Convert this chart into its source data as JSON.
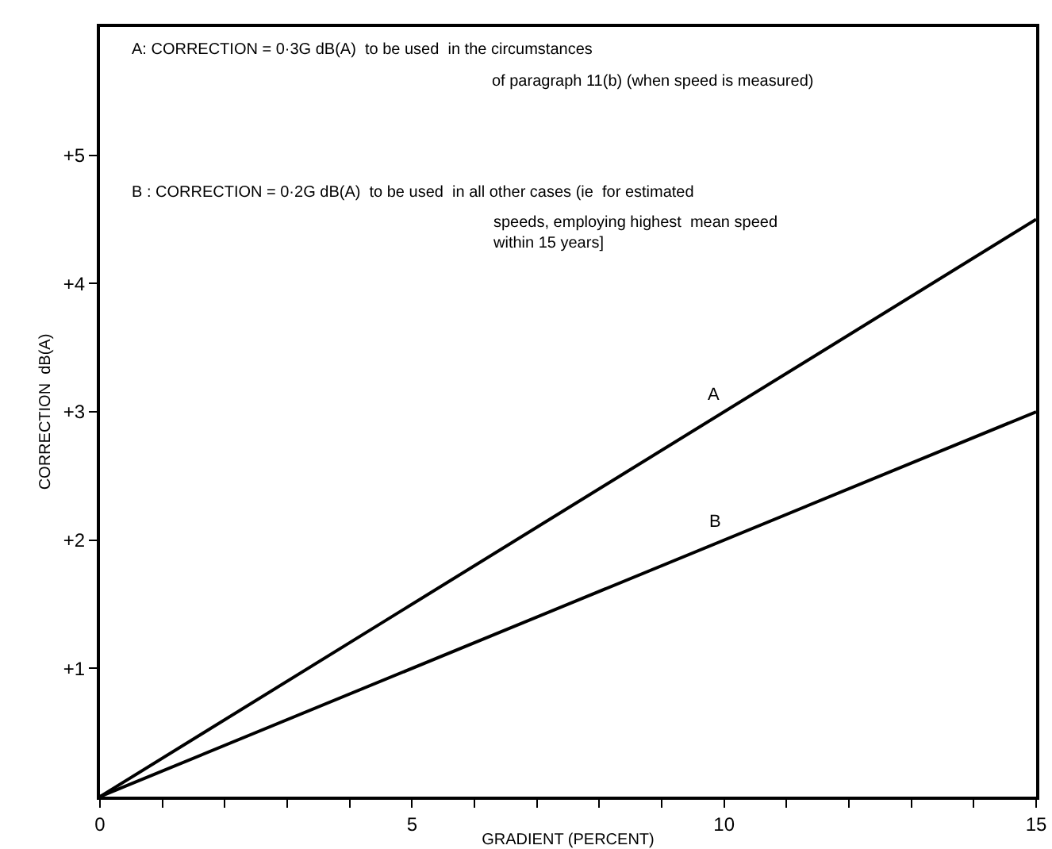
{
  "chart_data": {
    "type": "line",
    "xlabel": "GRADIENT (PERCENT)",
    "ylabel": "CORRECTION  dB(A)",
    "x": [
      0,
      15
    ],
    "series": [
      {
        "name": "A",
        "color": "#000000",
        "values": [
          0,
          4.5
        ]
      },
      {
        "name": "B",
        "color": "#000000",
        "values": [
          0,
          3.0
        ]
      }
    ],
    "xlim": [
      0,
      15
    ],
    "ylim": [
      0,
      6
    ],
    "xticks": [
      0,
      {
        "value": 1,
        "label": null
      },
      {
        "value": 2,
        "label": null
      },
      {
        "value": 3,
        "label": null
      },
      {
        "value": 4,
        "label": null
      },
      5,
      {
        "value": 6,
        "label": null
      },
      {
        "value": 7,
        "label": null
      },
      {
        "value": 8,
        "label": null
      },
      {
        "value": 9,
        "label": null
      },
      10,
      {
        "value": 11,
        "label": null
      },
      {
        "value": 12,
        "label": null
      },
      {
        "value": 13,
        "label": null
      },
      {
        "value": 14,
        "label": null
      },
      15
    ],
    "yticks": [
      {
        "value": 1,
        "label": "+1"
      },
      {
        "value": 2,
        "label": "+2"
      },
      {
        "value": 3,
        "label": "+3"
      },
      {
        "value": 4,
        "label": "+4"
      },
      {
        "value": 5,
        "label": "+5"
      }
    ],
    "annotations": [
      "A: CORRECTION = 0·3G dB(A)  to be used  in the circumstances\nof paragraph 11(b) (when speed is measured)",
      "B : CORRECTION = 0·2G dB(A)  to be used  in all other cases (ie  for estimated\nspeeds, employing highest  mean speed\nwithin 15 years]"
    ],
    "grid": false,
    "legend": false,
    "marker": "none",
    "line_style": "solid"
  }
}
